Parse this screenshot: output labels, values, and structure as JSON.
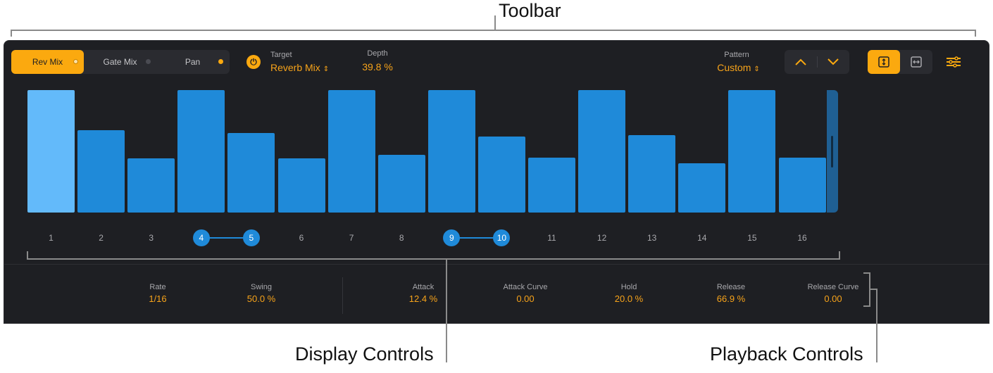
{
  "callouts": {
    "toolbar": "Toolbar",
    "display": "Display Controls",
    "playback": "Playback Controls"
  },
  "toolbar": {
    "tabs": [
      {
        "label": "Rev Mix",
        "active": true,
        "dot": "#fde1a6"
      },
      {
        "label": "Gate Mix",
        "active": false,
        "dot": "#4a4b52"
      },
      {
        "label": "Pan",
        "active": false,
        "dot": "#fba90f"
      }
    ],
    "target": {
      "label": "Target",
      "value": "Reverb Mix",
      "icon": "power-icon"
    },
    "depth": {
      "label": "Depth",
      "value": "39.8 %"
    },
    "pattern": {
      "label": "Pattern",
      "value": "Custom"
    },
    "accent": "#fba90f"
  },
  "steps": {
    "values": [
      1.0,
      0.67,
      0.44,
      1.0,
      0.65,
      0.44,
      1.0,
      0.47,
      1.0,
      0.62,
      0.45,
      1.0,
      0.63,
      0.4,
      1.0,
      0.45
    ],
    "labels": [
      "1",
      "2",
      "3",
      "4",
      "5",
      "6",
      "7",
      "8",
      "9",
      "10",
      "11",
      "12",
      "13",
      "14",
      "15",
      "16"
    ],
    "selected": [
      4,
      5,
      9,
      10
    ],
    "linked": [
      [
        4,
        5
      ],
      [
        9,
        10
      ]
    ],
    "bar_color": "#1f8ad9",
    "first_bar_color": "#63bafa"
  },
  "playback": [
    {
      "label": "Rate",
      "value": "1/16"
    },
    {
      "label": "Swing",
      "value": "50.0 %"
    },
    {
      "label": "Attack",
      "value": "12.4 %"
    },
    {
      "label": "Attack Curve",
      "value": "0.00"
    },
    {
      "label": "Hold",
      "value": "20.0 %"
    },
    {
      "label": "Release",
      "value": "66.9 %"
    },
    {
      "label": "Release Curve",
      "value": "0.00"
    }
  ]
}
